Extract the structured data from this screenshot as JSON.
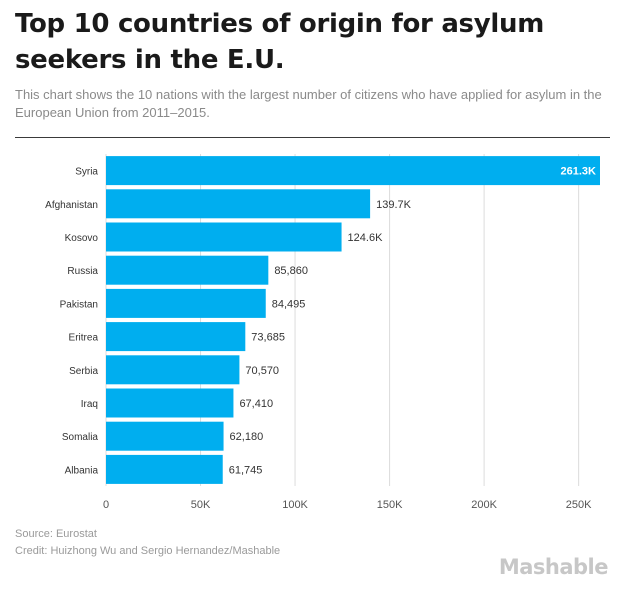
{
  "title": "Top 10 countries of origin for asylum seekers in the E.U.",
  "subtitle": "This chart shows the 10 nations with the largest number of citizens who have applied for asylum in the European Union from 2011–2015.",
  "footer": {
    "source": "Source: Eurostat",
    "credit": "Credit: Huizhong Wu and Sergio Hernandez/Mashable"
  },
  "brand": "Mashable",
  "colors": {
    "bar": "#00aeef",
    "grid": "#dcdcdc",
    "text": "#333333",
    "axis": "#555555"
  },
  "chart_data": {
    "type": "bar",
    "orientation": "horizontal",
    "title": "Top 10 countries of origin for asylum seekers in the E.U.",
    "xlabel": "",
    "ylabel": "",
    "xlim": [
      0,
      261300
    ],
    "xticks": [
      0,
      50000,
      100000,
      150000,
      200000,
      250000
    ],
    "xtick_labels": [
      "0",
      "50K",
      "100K",
      "150K",
      "200K",
      "250K"
    ],
    "categories": [
      "Syria",
      "Afghanistan",
      "Kosovo",
      "Russia",
      "Pakistan",
      "Eritrea",
      "Serbia",
      "Iraq",
      "Somalia",
      "Albania"
    ],
    "values": [
      261300,
      139700,
      124600,
      85860,
      84495,
      73685,
      70570,
      67410,
      62180,
      61745
    ],
    "value_labels": [
      "261.3K",
      "139.7K",
      "124.6K",
      "85,860",
      "84,495",
      "73,685",
      "70,570",
      "67,410",
      "62,180",
      "61,745"
    ]
  }
}
